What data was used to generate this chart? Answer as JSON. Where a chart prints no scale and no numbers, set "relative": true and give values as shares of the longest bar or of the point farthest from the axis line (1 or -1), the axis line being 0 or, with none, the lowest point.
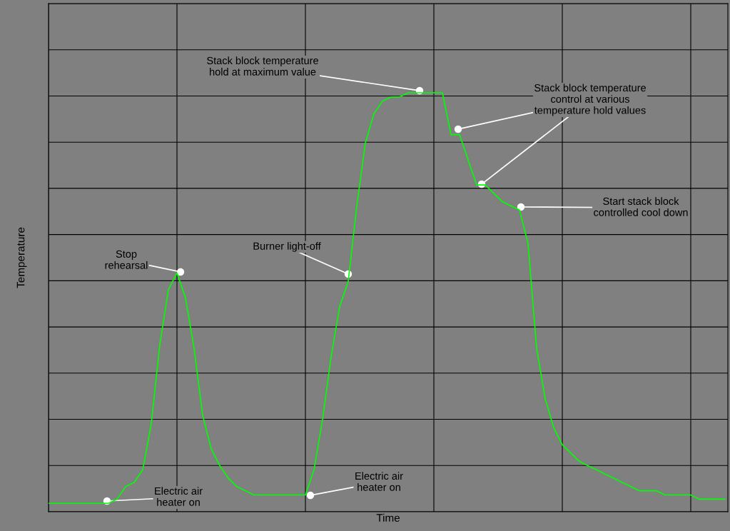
{
  "chart_data": {
    "type": "line",
    "relative": true,
    "xlabel": "Time",
    "ylabel": "Temperature",
    "color": "#00ff00",
    "grid": true,
    "tick_labels": false,
    "categories": [
      null,
      null,
      null,
      null,
      null,
      null,
      null,
      null,
      null,
      null,
      null,
      null,
      null,
      null,
      null,
      null,
      null,
      null,
      null,
      null,
      null,
      null,
      null,
      null,
      null,
      null,
      null,
      null,
      null,
      null,
      null,
      null,
      null,
      null,
      null,
      null,
      null,
      null,
      null,
      null,
      null,
      null,
      null,
      null,
      null,
      null,
      null,
      null,
      null,
      null,
      null,
      null,
      null,
      null,
      null,
      null,
      null,
      null,
      null,
      null,
      null,
      null,
      null,
      null,
      null,
      null,
      null,
      null,
      null,
      null,
      null,
      null,
      null,
      null,
      null,
      null,
      null,
      null,
      null,
      null
    ],
    "values": [
      0.02,
      0.02,
      0.02,
      0.02,
      0.02,
      0.02,
      0.02,
      0.02,
      0.03,
      0.06,
      0.07,
      0.1,
      0.21,
      0.4,
      0.53,
      0.57,
      0.51,
      0.39,
      0.23,
      0.15,
      0.11,
      0.08,
      0.06,
      0.05,
      0.04,
      0.04,
      0.04,
      0.04,
      0.04,
      0.04,
      0.04,
      0.1,
      0.22,
      0.37,
      0.49,
      0.55,
      0.73,
      0.88,
      0.95,
      0.98,
      0.99,
      0.99,
      1.0,
      1.0,
      1.0,
      1.0,
      1.0,
      0.9,
      0.9,
      0.84,
      0.78,
      0.78,
      0.76,
      0.74,
      0.73,
      0.72,
      0.64,
      0.39,
      0.27,
      0.2,
      0.16,
      0.14,
      0.12,
      0.11,
      0.1,
      0.09,
      0.08,
      0.07,
      0.06,
      0.05,
      0.05,
      0.05,
      0.04,
      0.04,
      0.04,
      0.04,
      0.03,
      0.03,
      0.03,
      0.03
    ],
    "annotations": [
      "Stop\nrehearsal",
      "Burner light-off",
      "Stack block temperature\nhold at maximum value",
      "Stack block temperature\ncontrol at various\ntemperature hold values",
      "Start stack block\ncontrolled cool down",
      "Electric air\nheater on",
      "Electric air\nheater on"
    ]
  }
}
